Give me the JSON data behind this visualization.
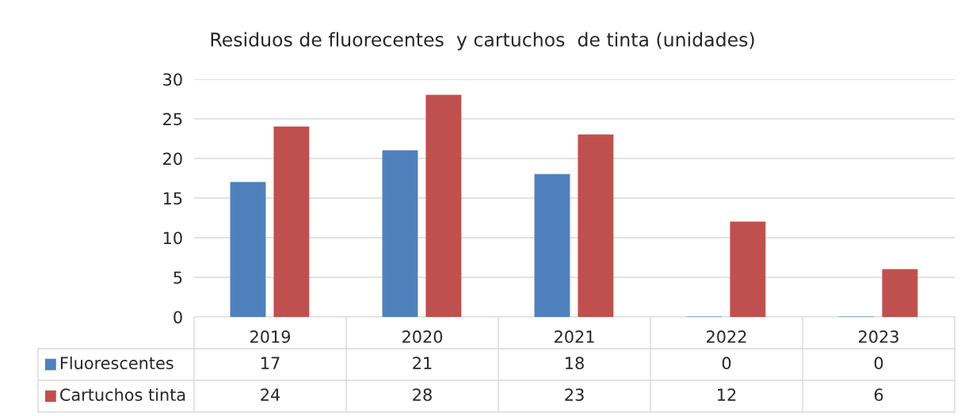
{
  "chart_data": {
    "type": "bar",
    "title": "Residuos de fluorecentes  y cartuchos  de tinta (unidades)",
    "categories": [
      "2019",
      "2020",
      "2021",
      "2022",
      "2023"
    ],
    "series": [
      {
        "name": "Fluorescentes",
        "color": "#4f81bd",
        "values": [
          17,
          21,
          18,
          0,
          0
        ]
      },
      {
        "name": "Cartuchos tinta",
        "color": "#c0504d",
        "values": [
          24,
          28,
          23,
          12,
          6
        ]
      }
    ],
    "ylim": [
      0,
      30
    ],
    "yticks": [
      0,
      5,
      10,
      15,
      20,
      25,
      30
    ],
    "grid": "y",
    "data_labels": true,
    "legend": "bottom"
  }
}
